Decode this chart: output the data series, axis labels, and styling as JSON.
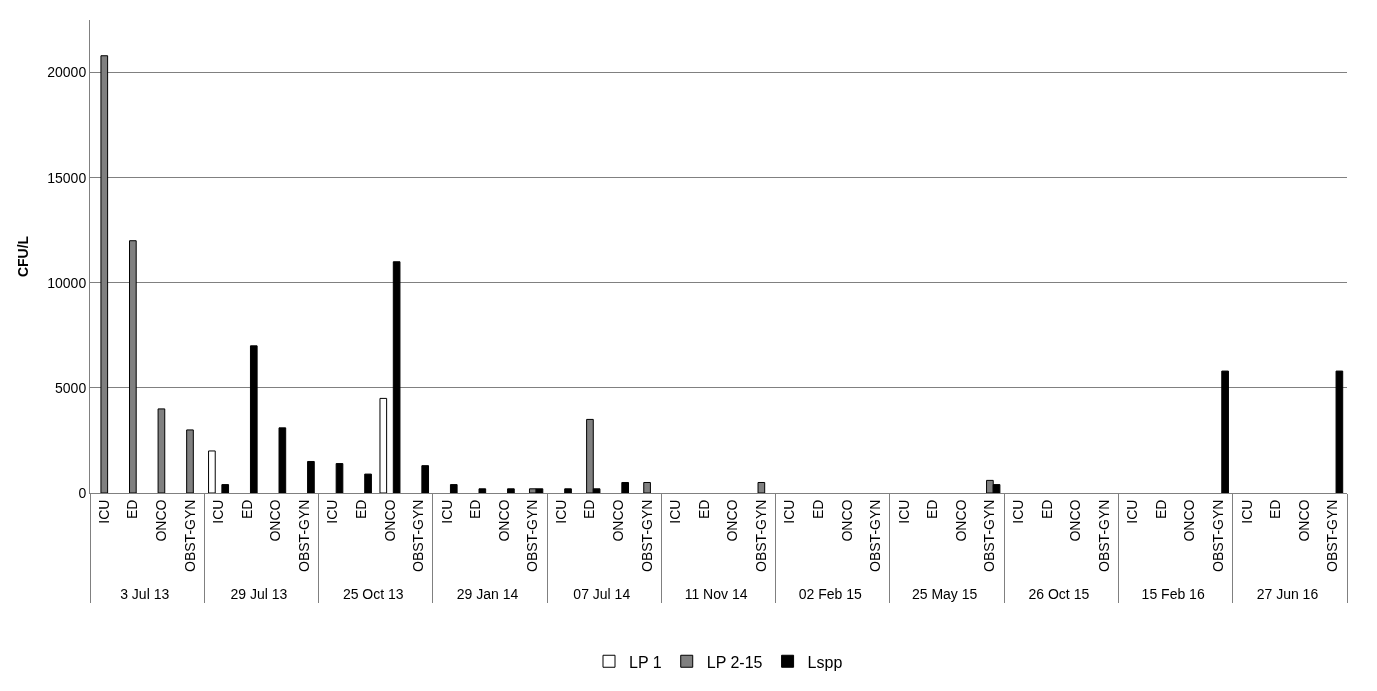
{
  "chart_data": {
    "type": "bar",
    "ylabel": "CFU/L",
    "categories": [
      "ICU",
      "ED",
      "ONCO",
      "OBST-GYN",
      "ICU",
      "ED",
      "ONCO",
      "OBST-GYN",
      "ICU",
      "ED",
      "ONCO",
      "OBST-GYN",
      "ICU",
      "ED",
      "ONCO",
      "OBST-GYN",
      "ICU",
      "ED",
      "ONCO",
      "OBST-GYN",
      "ICU",
      "ED",
      "ONCO",
      "OBST-GYN",
      "ICU",
      "ED",
      "ONCO",
      "OBST-GYN",
      "ICU",
      "ED",
      "ONCO",
      "OBST-GYN",
      "ICU",
      "ED",
      "ONCO",
      "OBST-GYN",
      "ICU",
      "ED",
      "ONCO",
      "OBST-GYN",
      "ICU",
      "ED",
      "ONCO",
      "OBST-GYN"
    ],
    "annotations": [
      "3 Jul 13",
      "29 Jul 13",
      "25 Oct 13",
      "29 Jan 14",
      "07 Jul 14",
      "11 Nov 14",
      "02 Feb 15",
      "25 May 15",
      "26 Oct 15",
      "15 Feb 16",
      "27 Jun 16"
    ],
    "series": [
      {
        "name": "LP 1",
        "color": "#ffffff",
        "values": [
          null,
          null,
          null,
          null,
          2000,
          null,
          null,
          null,
          null,
          null,
          4500,
          null,
          null,
          null,
          null,
          null,
          null,
          null,
          null,
          null,
          null,
          null,
          null,
          null,
          null,
          null,
          null,
          null,
          null,
          null,
          null,
          null,
          null,
          null,
          null,
          null,
          null,
          null,
          null,
          null,
          null,
          null,
          null,
          null
        ]
      },
      {
        "name": "LP 2-15",
        "color": "#808080",
        "values": [
          20800,
          12000,
          4000,
          3000,
          null,
          null,
          null,
          null,
          null,
          null,
          null,
          null,
          null,
          null,
          null,
          200,
          null,
          3500,
          null,
          500,
          null,
          null,
          null,
          500,
          null,
          null,
          null,
          null,
          null,
          null,
          null,
          600,
          null,
          null,
          null,
          null,
          null,
          null,
          null,
          null,
          null,
          null,
          null,
          null
        ]
      },
      {
        "name": "Lspp",
        "color": "#000000",
        "values": [
          null,
          null,
          null,
          null,
          400,
          7000,
          3100,
          1500,
          1400,
          900,
          11000,
          1300,
          400,
          200,
          200,
          200,
          200,
          200,
          500,
          null,
          null,
          null,
          null,
          null,
          null,
          null,
          null,
          null,
          null,
          null,
          null,
          400,
          null,
          null,
          null,
          null,
          null,
          null,
          null,
          5800,
          null,
          null,
          null,
          5800
        ]
      }
    ],
    "ylim": [
      0,
      22500
    ],
    "yticks": [
      0,
      5000,
      10000,
      15000,
      20000
    ],
    "grid": "y",
    "legend": "bottom"
  }
}
